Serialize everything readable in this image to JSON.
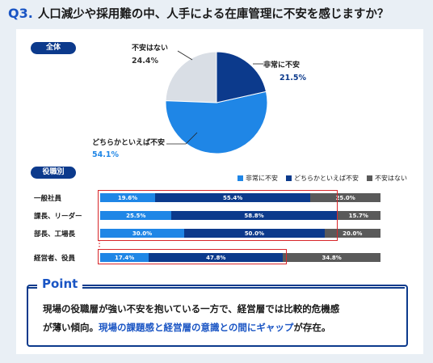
{
  "header": {
    "qnum": "Q3.",
    "question": "人口減少や採用難の中、人手による在庫管理に不安を感じますか？"
  },
  "colors": {
    "anxious": "#0c3a8c",
    "somewhat": "#1f86e6",
    "not_anxious": "#d9dee5",
    "not_anxious_bar": "#5a5a5a",
    "highlight": "#d8262a"
  },
  "sections": {
    "overall": "全体",
    "by_role": "役職別"
  },
  "chart_data": [
    {
      "type": "pie",
      "slices": [
        {
          "label": "非常に不安",
          "value": 21.5,
          "pct": "21.5%"
        },
        {
          "label": "どちらかといえば不安",
          "value": 54.1,
          "pct": "54.1%"
        },
        {
          "label": "不安はない",
          "value": 24.4,
          "pct": "24.4%"
        }
      ]
    },
    {
      "type": "bar",
      "stacked": true,
      "orientation": "horizontal",
      "categories": [
        "一般社員",
        "課長、リーダー",
        "部長、工場長",
        "経営者、役員"
      ],
      "series": [
        {
          "name": "非常に不安",
          "values": [
            19.6,
            25.5,
            30.0,
            17.4
          ],
          "labels": [
            "19.6%",
            "25.5%",
            "30.0%",
            "17.4%"
          ]
        },
        {
          "name": "どちらかといえば不安",
          "values": [
            55.4,
            58.8,
            50.0,
            47.8
          ],
          "labels": [
            "55.4%",
            "58.8%",
            "50.0%",
            "47.8%"
          ]
        },
        {
          "name": "不安はない",
          "values": [
            25.0,
            15.7,
            20.0,
            34.8
          ],
          "labels": [
            "25.0%",
            "15.7%",
            "20.0%",
            "34.8%"
          ]
        }
      ],
      "legend": "top-right",
      "xlim": [
        0,
        100
      ]
    }
  ],
  "point": {
    "title": "Point",
    "line1": "現場の役職層が強い不安を抱いている一方で、経営層では比較的危機感",
    "line2_a": "が薄い傾向。",
    "line2_b": "現場の課題感と経営層の意識との間にギャップ",
    "line2_c": "が存在。"
  }
}
